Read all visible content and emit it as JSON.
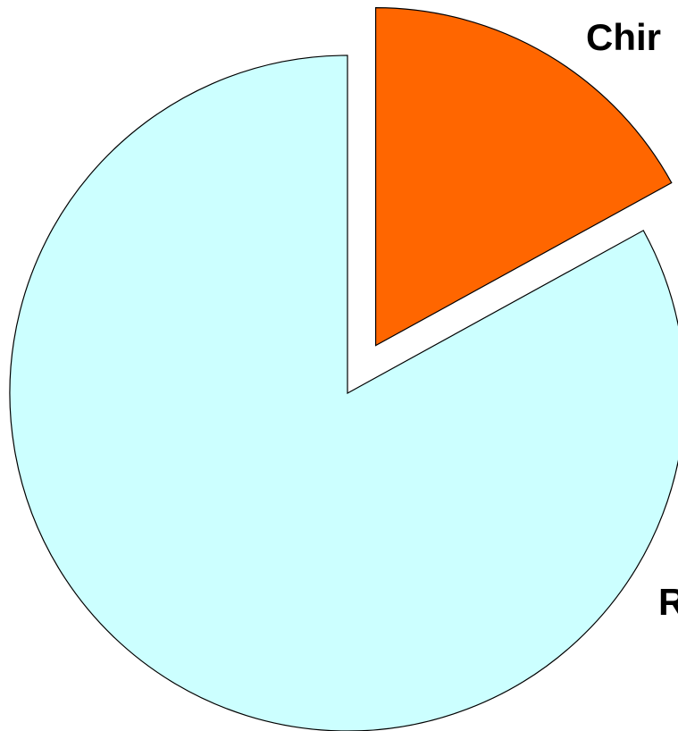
{
  "chart_data": {
    "type": "pie",
    "title": "",
    "slices": [
      {
        "label": "Chir",
        "value": 17,
        "color": "#FF6600",
        "exploded": true
      },
      {
        "label": "R",
        "value": 83,
        "color": "#CCFFFF",
        "exploded": false
      }
    ],
    "legend": "none"
  }
}
